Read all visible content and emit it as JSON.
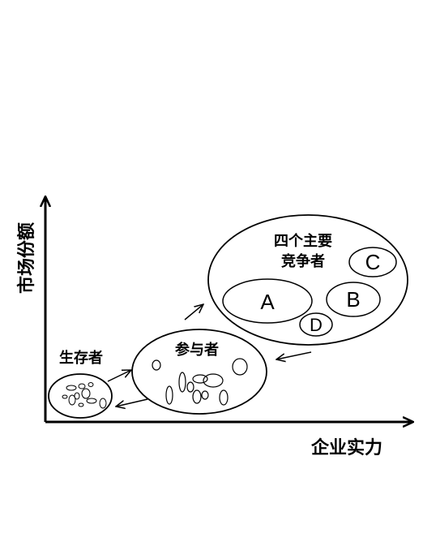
{
  "axes": {
    "y_label": "市场份额",
    "x_label": "企业实力"
  },
  "groups": {
    "survivors": {
      "label": "生存者"
    },
    "participants": {
      "label": "参与者"
    },
    "main_competitors": {
      "label_line1": "四个主要",
      "label_line2": "竞争者"
    }
  },
  "competitors": [
    "A",
    "B",
    "C",
    "D"
  ],
  "colors": {
    "stroke": "#000000",
    "background": "#ffffff"
  }
}
